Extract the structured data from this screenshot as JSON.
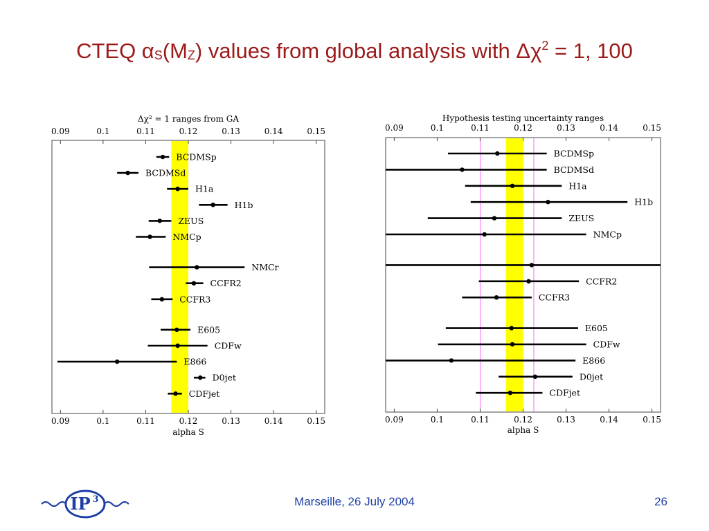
{
  "slide": {
    "title_prefix": "CTEQ α",
    "title_sub1": "S",
    "title_mid": "(M",
    "title_sub2": "Z",
    "title_mid2": ") values from global analysis with Δχ",
    "title_sup": "2",
    "title_suffix": " = 1, 100",
    "footer_center": "Marseille, 26 July 2004",
    "page_number": "26",
    "logo_text": "IP",
    "logo_sup": "3"
  },
  "colors": {
    "title": "#9c1a1a",
    "footer": "#1f3fa8",
    "band": "#ffff00",
    "magenta": "#ff66ff",
    "logo": "#1f3fa8"
  },
  "chart_data": [
    {
      "type": "scatter",
      "title": "Δχ² = 1 ranges from GA",
      "xlabel": "alpha S",
      "xlim": [
        0.088,
        0.152
      ],
      "ticks": [
        "0.09",
        "0.1",
        "0.11",
        "0.12",
        "0.13",
        "0.14",
        "0.15"
      ],
      "tick_values": [
        0.09,
        0.1,
        0.11,
        0.12,
        0.13,
        0.14,
        0.15
      ],
      "band": [
        0.116,
        0.12
      ],
      "series": [
        {
          "name": "BCDMSp",
          "x": 0.114,
          "lo": 0.1125,
          "hi": 0.1155
        },
        {
          "name": "BCDMSd",
          "x": 0.1058,
          "lo": 0.1033,
          "hi": 0.1083
        },
        {
          "name": "H1a",
          "x": 0.1175,
          "lo": 0.115,
          "hi": 0.12
        },
        {
          "name": "H1b",
          "x": 0.1258,
          "lo": 0.1225,
          "hi": 0.1292
        },
        {
          "name": "ZEUS",
          "x": 0.1133,
          "lo": 0.1107,
          "hi": 0.116
        },
        {
          "name": "NMCp",
          "x": 0.111,
          "lo": 0.1077,
          "hi": 0.1147
        },
        {
          "name": "NMCr",
          "x": 0.122,
          "lo": 0.1108,
          "hi": 0.1332
        },
        {
          "name": "CCFR2",
          "x": 0.1213,
          "lo": 0.1194,
          "hi": 0.1235
        },
        {
          "name": "CCFR3",
          "x": 0.1138,
          "lo": 0.1113,
          "hi": 0.1163
        },
        {
          "name": "E605",
          "x": 0.1173,
          "lo": 0.1135,
          "hi": 0.1205
        },
        {
          "name": "CDFw",
          "x": 0.1175,
          "lo": 0.1105,
          "hi": 0.1245
        },
        {
          "name": "E866",
          "x": 0.1033,
          "lo": 0.0893,
          "hi": 0.1173
        },
        {
          "name": "D0jet",
          "x": 0.1228,
          "lo": 0.1213,
          "hi": 0.124
        },
        {
          "name": "CDFjet",
          "x": 0.117,
          "lo": 0.1152,
          "hi": 0.1185
        }
      ]
    },
    {
      "type": "scatter",
      "title": "Hypothesis testing uncertainty ranges",
      "xlabel": "alpha S",
      "xlim": [
        0.088,
        0.152
      ],
      "ticks": [
        "0.09",
        "0.1",
        "0.11",
        "0.12",
        "0.13",
        "0.14",
        "0.15"
      ],
      "tick_values": [
        0.09,
        0.1,
        0.11,
        0.12,
        0.13,
        0.14,
        0.15
      ],
      "band": [
        0.116,
        0.12
      ],
      "magenta_lines": [
        0.11,
        0.1225
      ],
      "series": [
        {
          "name": "BCDMSp",
          "x": 0.114,
          "lo": 0.1025,
          "hi": 0.1255
        },
        {
          "name": "BCDMSd",
          "x": 0.1058,
          "lo": 0.088,
          "hi": 0.1255
        },
        {
          "name": "H1a",
          "x": 0.1175,
          "lo": 0.1065,
          "hi": 0.129
        },
        {
          "name": "H1b",
          "x": 0.1258,
          "lo": 0.1078,
          "hi": 0.1443
        },
        {
          "name": "ZEUS",
          "x": 0.1133,
          "lo": 0.0978,
          "hi": 0.129
        },
        {
          "name": "NMCp",
          "x": 0.111,
          "lo": 0.088,
          "hi": 0.1347
        },
        {
          "name": "",
          "x": 0.122,
          "lo": 0.088,
          "hi": 0.152
        },
        {
          "name": "CCFR2",
          "x": 0.1213,
          "lo": 0.1097,
          "hi": 0.133
        },
        {
          "name": "CCFR3",
          "x": 0.1138,
          "lo": 0.1058,
          "hi": 0.122
        },
        {
          "name": "E605",
          "x": 0.1173,
          "lo": 0.102,
          "hi": 0.1328
        },
        {
          "name": "CDFw",
          "x": 0.1175,
          "lo": 0.1002,
          "hi": 0.1347
        },
        {
          "name": "E866",
          "x": 0.1033,
          "lo": 0.088,
          "hi": 0.1322
        },
        {
          "name": "D0jet",
          "x": 0.1228,
          "lo": 0.1143,
          "hi": 0.1315
        },
        {
          "name": "CDFjet",
          "x": 0.117,
          "lo": 0.109,
          "hi": 0.1245
        }
      ]
    }
  ]
}
